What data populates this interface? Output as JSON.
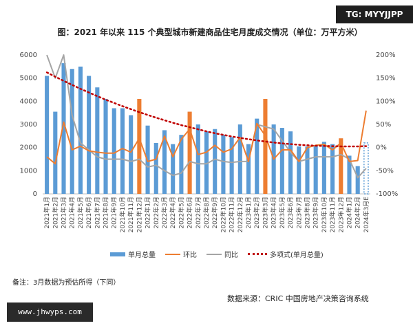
{
  "watermark_top": "TG: MYYJJPP",
  "watermark_bottom": "www.jhwyps.com",
  "note": "备注：3月数据为预估所得（下同）",
  "source": "数据来源：CRIC 中国房地产决策咨询系统",
  "colors": {
    "bar": "#5b9bd5",
    "bar_highlight": "#ed7d31",
    "bar_estimate": "#5b9bd5",
    "mom": "#ed7d31",
    "yoy": "#a5a5a5",
    "trend": "#c00000"
  },
  "chart_data": {
    "type": "bar",
    "title": "图：2021 年以来 115 个典型城市新建商品住宅月度成交情况（单位：万平方米）",
    "categories": [
      "2021年1月",
      "2021年2月",
      "2021年3月",
      "2021年4月",
      "2021年5月",
      "2021年6月",
      "2021年7月",
      "2021年8月",
      "2021年9月",
      "2021年10月",
      "2021年11月",
      "2021年12月",
      "2022年1月",
      "2022年2月",
      "2022年3月",
      "2022年4月",
      "2022年5月",
      "2022年6月",
      "2022年7月",
      "2022年8月",
      "2022年9月",
      "2022年10月",
      "2022年11月",
      "2022年12月",
      "2023年1月",
      "2023年2月",
      "2023年3月",
      "2023年4月",
      "2023年5月",
      "2023年6月",
      "2023年7月",
      "2023年8月",
      "2023年9月",
      "2023年10月",
      "2023年11月",
      "2023年12月",
      "2024年1月",
      "2024年2月",
      "2024年3月E"
    ],
    "y_left": {
      "ylim": [
        0,
        6000
      ],
      "ticks": [
        "0",
        "1000",
        "2000",
        "3000",
        "4000",
        "5000",
        "6000"
      ]
    },
    "y_right": {
      "ylim": [
        -100,
        200
      ],
      "ticks": [
        "-100%",
        "-50%",
        "0%",
        "50%",
        "100%",
        "150%",
        "200%"
      ]
    },
    "highlight_categories": [
      "2021年12月",
      "2022年6月",
      "2023年3月",
      "2023年12月"
    ],
    "estimate_categories": [
      "2024年3月E"
    ],
    "series": [
      {
        "name": "单月总量",
        "kind": "bar",
        "axis": "left",
        "values": [
          5100,
          3550,
          5650,
          5400,
          5500,
          5100,
          4600,
          4100,
          3700,
          3700,
          3400,
          4100,
          2950,
          2200,
          2750,
          2150,
          2550,
          3550,
          3000,
          2700,
          2800,
          2550,
          2450,
          3000,
          2150,
          3250,
          4100,
          3000,
          2850,
          2700,
          2050,
          2050,
          2100,
          2250,
          2150,
          2400,
          1650,
          1200,
          2200
        ]
      },
      {
        "name": "环比",
        "kind": "line",
        "axis": "right",
        "values": [
          -20,
          -35,
          55,
          -5,
          3,
          -7,
          -10,
          -12,
          -12,
          -2,
          -10,
          20,
          -30,
          -25,
          25,
          -20,
          18,
          40,
          -15,
          -10,
          5,
          -10,
          -3,
          22,
          -30,
          52,
          26,
          -25,
          -5,
          -5,
          -30,
          0,
          5,
          7,
          -5,
          10,
          -30,
          -28,
          80
        ]
      },
      {
        "name": "同比",
        "kind": "line",
        "axis": "right",
        "values": [
          200,
          150,
          200,
          70,
          10,
          -5,
          -20,
          -25,
          -25,
          -25,
          -30,
          -25,
          -42,
          -38,
          -50,
          -60,
          -55,
          -30,
          -35,
          -35,
          -25,
          -30,
          -32,
          -30,
          -30,
          50,
          45,
          40,
          15,
          -10,
          -30,
          -25,
          -20,
          -20,
          -20,
          -15,
          -25,
          -65,
          -45
        ]
      },
      {
        "name": "多项式(单月总量)",
        "kind": "trend",
        "axis": "left",
        "values": [
          5250,
          5060,
          4880,
          4710,
          4540,
          4380,
          4220,
          4070,
          3930,
          3790,
          3660,
          3530,
          3410,
          3290,
          3180,
          3070,
          2970,
          2880,
          2790,
          2700,
          2620,
          2550,
          2480,
          2420,
          2360,
          2310,
          2260,
          2220,
          2180,
          2150,
          2120,
          2100,
          2080,
          2070,
          2060,
          2050,
          2050,
          2050,
          2060
        ]
      }
    ]
  }
}
